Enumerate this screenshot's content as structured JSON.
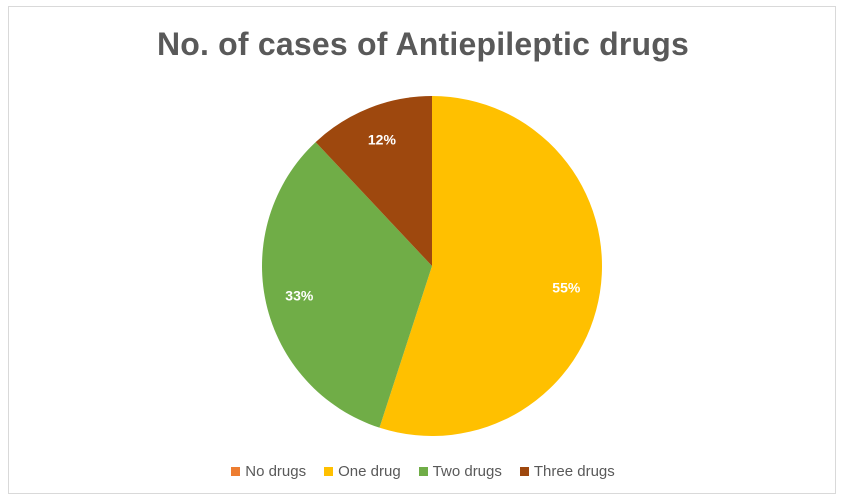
{
  "chart_data": {
    "type": "pie",
    "title": "No. of cases of Antiepileptic drugs",
    "categories": [
      "No drugs",
      "One drug",
      "Two drugs",
      "Three drugs"
    ],
    "values": [
      0,
      55,
      33,
      12
    ],
    "labels": [
      "",
      "55%",
      "33%",
      "12%"
    ],
    "colors": [
      "#ED7D31",
      "#FFC000",
      "#70AD47",
      "#9E480E"
    ],
    "legend": "bottom"
  }
}
